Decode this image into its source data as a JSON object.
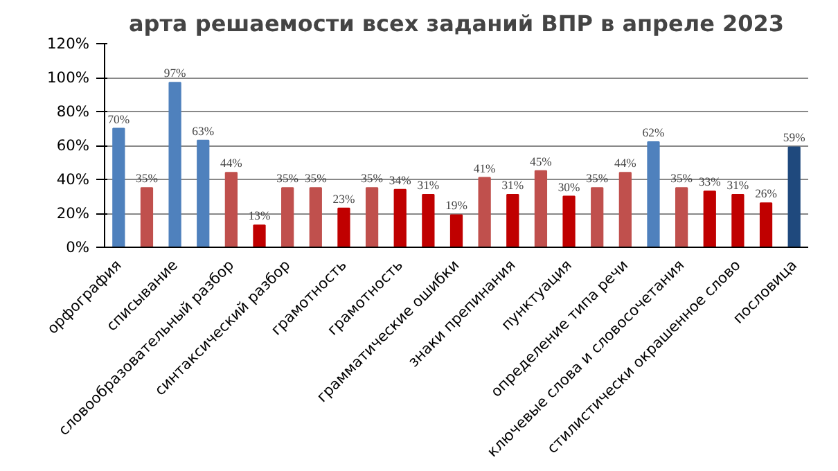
{
  "chart_data": {
    "type": "bar",
    "title": "арта решаемости всех заданий ВПР в апреле 2023",
    "categories": [
      "орфография",
      null,
      "списывание",
      null,
      "словообразовательный разбор",
      null,
      "синтаксический разбор",
      null,
      "грамотность",
      null,
      "грамотность",
      null,
      "грамматические ошибки",
      null,
      "знаки препинания",
      null,
      "пунктуация",
      null,
      "определение типа речи",
      null,
      "ключевые слова и словосочетания",
      null,
      "стилистически окрашенное слово",
      null,
      "пословица"
    ],
    "values": [
      70,
      35,
      97,
      63,
      44,
      13,
      35,
      35,
      23,
      35,
      34,
      31,
      19,
      41,
      31,
      45,
      30,
      35,
      44,
      62,
      35,
      33,
      31,
      26,
      59
    ],
    "value_labels": [
      "70%",
      "35%",
      "97%",
      "63%",
      "44%",
      "13%",
      "35%",
      "35%",
      "23%",
      "35%",
      "34%",
      "31%",
      "19%",
      "41%",
      "31%",
      "45%",
      "30%",
      "35%",
      "44%",
      "62%",
      "35%",
      "33%",
      "31%",
      "26%",
      "59%"
    ],
    "colors": [
      "#4f81bd",
      "#c0504d",
      "#4f81bd",
      "#4f81bd",
      "#c0504d",
      "#c00000",
      "#c0504d",
      "#c0504d",
      "#c00000",
      "#c0504d",
      "#c00000",
      "#c00000",
      "#c00000",
      "#c0504d",
      "#c00000",
      "#c0504d",
      "#c00000",
      "#c0504d",
      "#c0504d",
      "#4f81bd",
      "#c0504d",
      "#c00000",
      "#c00000",
      "#c00000",
      "#1f497d"
    ],
    "ylim": [
      0,
      120
    ],
    "yticks": [
      {
        "value": 0,
        "label": "0%"
      },
      {
        "value": 20,
        "label": "20%"
      },
      {
        "value": 40,
        "label": "40%"
      },
      {
        "value": 60,
        "label": "60%"
      },
      {
        "value": 80,
        "label": "80%"
      },
      {
        "value": 100,
        "label": "100%"
      },
      {
        "value": 120,
        "label": "120%"
      }
    ],
    "grid": "y"
  }
}
